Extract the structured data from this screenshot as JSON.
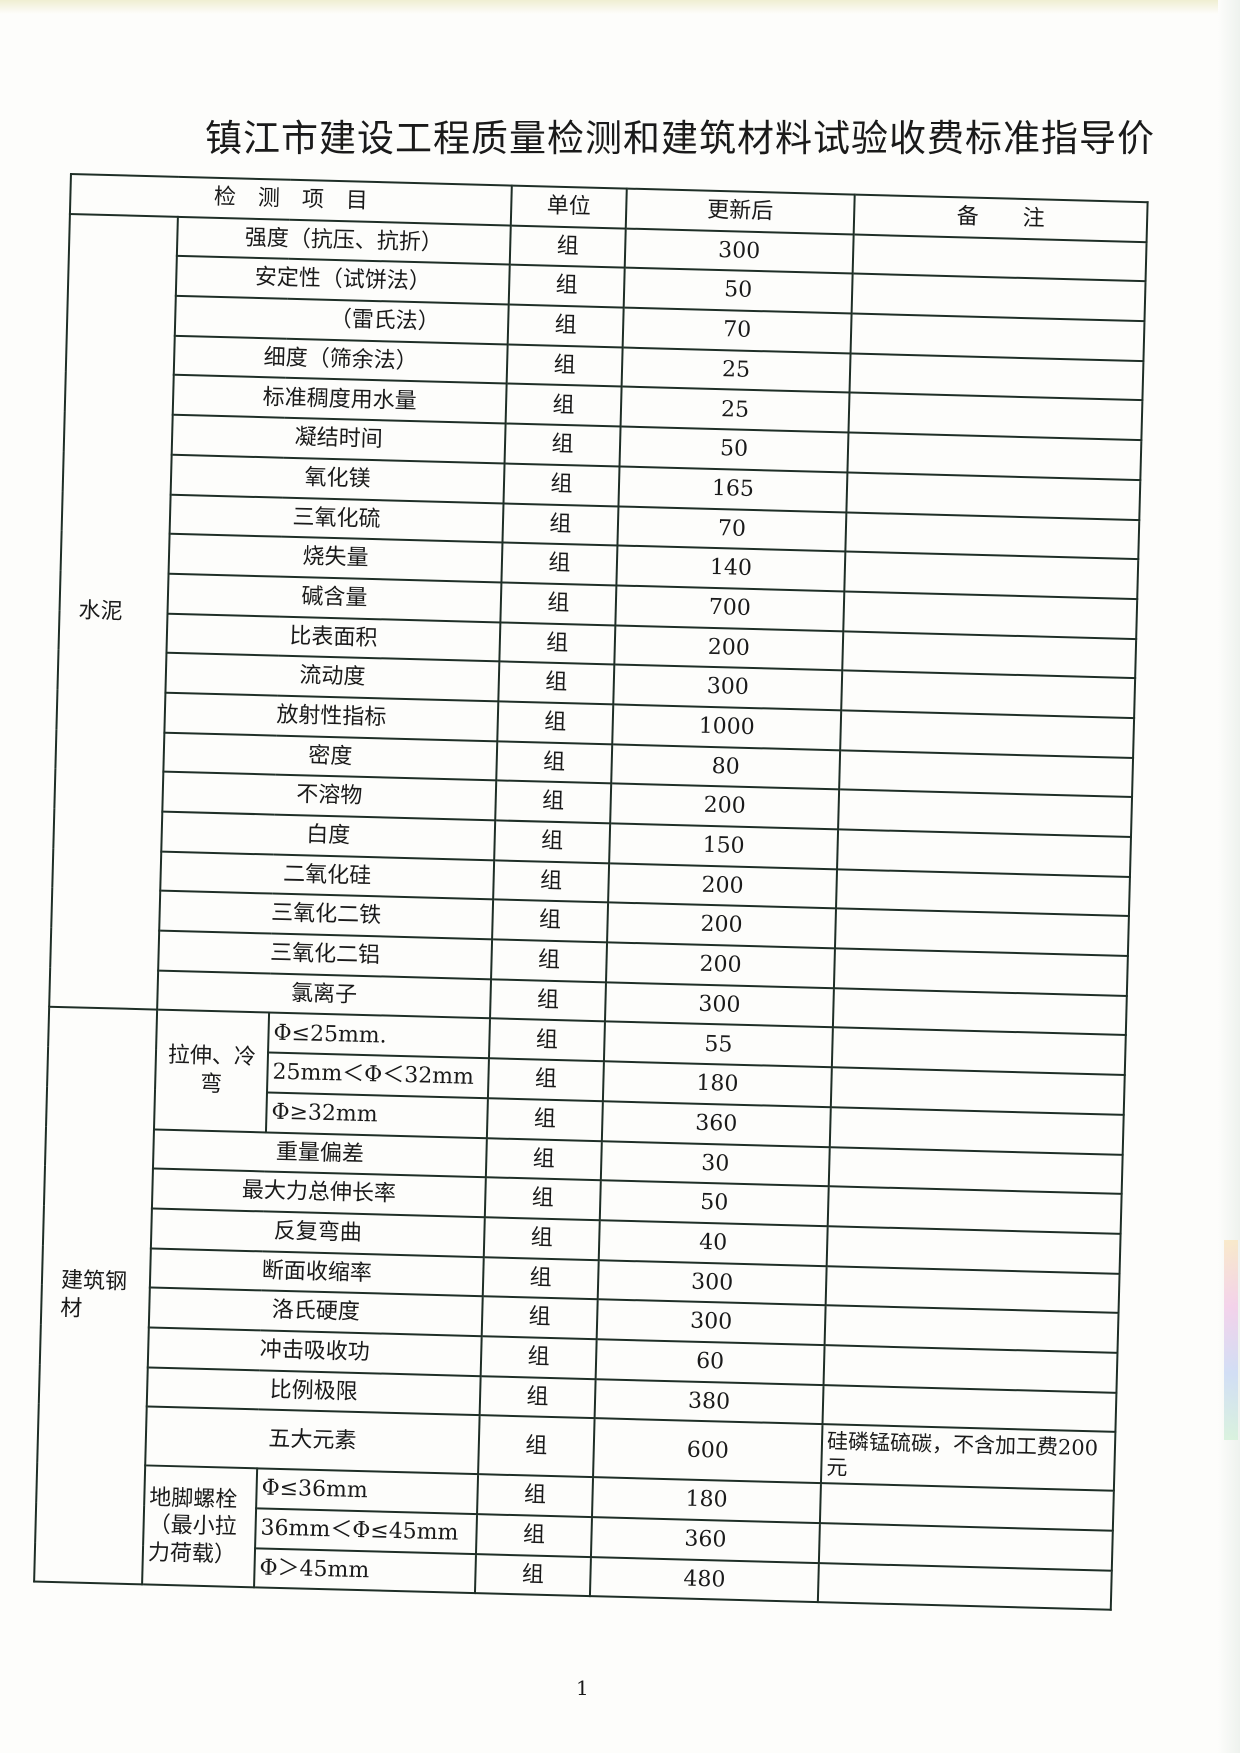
{
  "title": "镇江市建设工程质量检测和建筑材料试验收费标准指导价",
  "header": {
    "item": "检　测　项　目",
    "unit": "单位",
    "value": "更新后",
    "note": "备　　注"
  },
  "sections": [
    {
      "category": "水泥",
      "rows": [
        {
          "item": "强度（抗压、抗折）",
          "unit": "组",
          "value": "300"
        },
        {
          "item": "安定性（试饼法）",
          "unit": "组",
          "value": "50"
        },
        {
          "item": "（雷氏法）",
          "unit": "组",
          "value": "70",
          "indent": true
        },
        {
          "item": "细度（筛余法）",
          "unit": "组",
          "value": "25"
        },
        {
          "item": "标准稠度用水量",
          "unit": "组",
          "value": "25"
        },
        {
          "item": "凝结时间",
          "unit": "组",
          "value": "50"
        },
        {
          "item": "氧化镁",
          "unit": "组",
          "value": "165"
        },
        {
          "item": "三氧化硫",
          "unit": "组",
          "value": "70"
        },
        {
          "item": "烧失量",
          "unit": "组",
          "value": "140"
        },
        {
          "item": "碱含量",
          "unit": "组",
          "value": "700"
        },
        {
          "item": "比表面积",
          "unit": "组",
          "value": "200"
        },
        {
          "item": "流动度",
          "unit": "组",
          "value": "300"
        },
        {
          "item": "放射性指标",
          "unit": "组",
          "value": "1000"
        },
        {
          "item": "密度",
          "unit": "组",
          "value": "80"
        },
        {
          "item": "不溶物",
          "unit": "组",
          "value": "200"
        },
        {
          "item": "白度",
          "unit": "组",
          "value": "150"
        },
        {
          "item": "二氧化硅",
          "unit": "组",
          "value": "200"
        },
        {
          "item": "三氧化二铁",
          "unit": "组",
          "value": "200"
        },
        {
          "item": "三氧化二铝",
          "unit": "组",
          "value": "200"
        },
        {
          "item": "氯离子",
          "unit": "组",
          "value": "300"
        }
      ]
    },
    {
      "category": "建筑钢材",
      "rows": [
        {
          "group": "拉伸、冷弯",
          "subrows": [
            {
              "item": "Φ≤25mm.",
              "unit": "组",
              "value": "55"
            },
            {
              "item": "25mm＜Φ＜32mm",
              "unit": "组",
              "value": "180"
            },
            {
              "item": "Φ≥32mm",
              "unit": "组",
              "value": "360"
            }
          ]
        },
        {
          "item": "重量偏差",
          "unit": "组",
          "value": "30"
        },
        {
          "item": "最大力总伸长率",
          "unit": "组",
          "value": "50"
        },
        {
          "item": "反复弯曲",
          "unit": "组",
          "value": "40"
        },
        {
          "item": "断面收缩率",
          "unit": "组",
          "value": "300"
        },
        {
          "item": "洛氏硬度",
          "unit": "组",
          "value": "300"
        },
        {
          "item": "冲击吸收功",
          "unit": "组",
          "value": "60"
        },
        {
          "item": "比例极限",
          "unit": "组",
          "value": "380"
        },
        {
          "item": "五大元素",
          "unit": "组",
          "value": "600",
          "note": "硅磷锰硫碳，不含加工费200元",
          "tall": true
        },
        {
          "group": "地脚螺栓（最小拉力荷载）",
          "subrows": [
            {
              "item": "Φ≤36mm",
              "unit": "组",
              "value": "180"
            },
            {
              "item": "36mm＜Φ≤45mm",
              "unit": "组",
              "value": "360"
            },
            {
              "item": "Φ＞45mm",
              "unit": "组",
              "value": "480"
            }
          ]
        }
      ]
    }
  ],
  "page_number": "1"
}
